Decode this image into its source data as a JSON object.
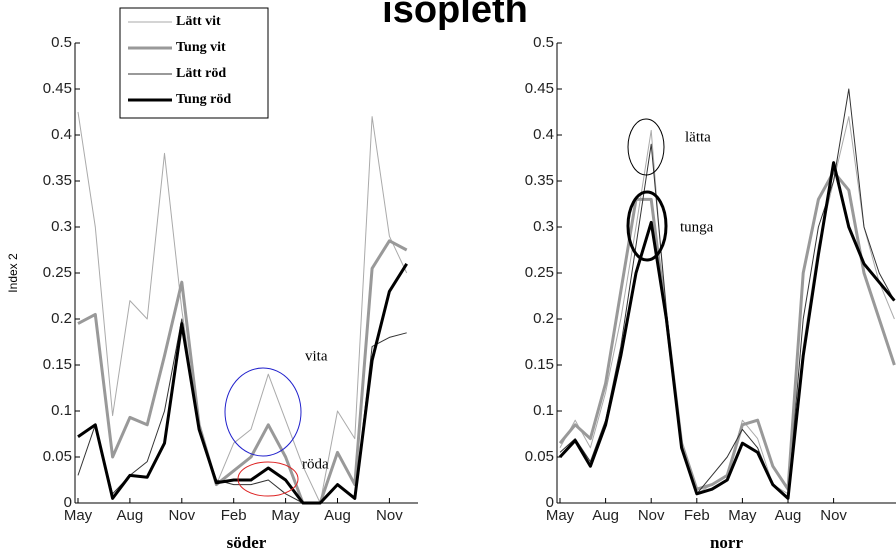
{
  "title": "isopleth",
  "chart_data": [
    {
      "type": "line",
      "xlabel": "söder",
      "ylabel": "Index 2",
      "legend": "upper left",
      "categories": [
        "May",
        null,
        null,
        "Aug",
        null,
        null,
        "Nov",
        null,
        null,
        "Feb",
        null,
        null,
        "May",
        null,
        null,
        "Aug",
        null,
        null,
        "Nov",
        null
      ],
      "ylim": [
        0,
        0.5
      ],
      "yticks": [
        0,
        0.05,
        0.1,
        0.15,
        0.2,
        0.25,
        0.3,
        0.35,
        0.4,
        0.45,
        0.5
      ],
      "annotations": [
        {
          "text": "vita"
        },
        {
          "text": "röda"
        }
      ],
      "series": [
        {
          "name": "Lätt vit",
          "color": "#aaaaaa",
          "width": 1,
          "values": [
            0.425,
            0.3,
            0.095,
            0.22,
            0.2,
            0.38,
            0.21,
            0.08,
            0.02,
            0.065,
            0.08,
            0.14,
            0.09,
            0.04,
            0.0,
            0.1,
            0.07,
            0.42,
            0.29,
            0.25
          ]
        },
        {
          "name": "Tung vit",
          "color": "#999999",
          "width": 3,
          "values": [
            0.195,
            0.205,
            0.05,
            0.093,
            0.085,
            0.16,
            0.24,
            0.085,
            0.02,
            0.035,
            0.05,
            0.085,
            0.05,
            0.0,
            0.0,
            0.055,
            0.02,
            0.255,
            0.285,
            0.275
          ]
        },
        {
          "name": "Lätt röd",
          "color": "#333333",
          "width": 1,
          "values": [
            0.03,
            0.085,
            0.01,
            0.03,
            0.045,
            0.1,
            0.2,
            0.08,
            0.025,
            0.02,
            0.02,
            0.025,
            0.01,
            0.0,
            0.0,
            0.02,
            0.005,
            0.17,
            0.18,
            0.185
          ]
        },
        {
          "name": "Tung röd",
          "color": "#000000",
          "width": 3,
          "values": [
            0.072,
            0.085,
            0.005,
            0.03,
            0.028,
            0.065,
            0.195,
            0.08,
            0.022,
            0.025,
            0.025,
            0.038,
            0.025,
            0.0,
            0.0,
            0.02,
            0.005,
            0.155,
            0.23,
            0.26
          ]
        }
      ]
    },
    {
      "type": "line",
      "xlabel": "norr",
      "categories": [
        "May",
        null,
        null,
        "Aug",
        null,
        null,
        "Nov",
        null,
        null,
        "Feb",
        null,
        null,
        "May",
        null,
        null,
        "Aug",
        null,
        null,
        "Nov",
        null,
        null,
        null,
        null
      ],
      "ylim": [
        0,
        0.5
      ],
      "yticks": [
        0,
        0.05,
        0.1,
        0.15,
        0.2,
        0.25,
        0.3,
        0.35,
        0.4,
        0.45,
        0.5
      ],
      "annotations": [
        {
          "text": "lätta"
        },
        {
          "text": "tunga"
        }
      ],
      "series": [
        {
          "name": "Lätt vit",
          "color": "#aaaaaa",
          "width": 1,
          "values": [
            0.06,
            0.09,
            0.06,
            0.12,
            0.2,
            0.3,
            0.405,
            0.2,
            0.06,
            0.01,
            0.02,
            0.03,
            0.09,
            0.07,
            0.02,
            0.01,
            0.17,
            0.28,
            0.35,
            0.42,
            0.3,
            0.24,
            0.2
          ]
        },
        {
          "name": "Tung vit",
          "color": "#999999",
          "width": 3,
          "values": [
            0.065,
            0.085,
            0.07,
            0.13,
            0.23,
            0.33,
            0.33,
            0.2,
            0.065,
            0.015,
            0.02,
            0.03,
            0.085,
            0.09,
            0.04,
            0.015,
            0.25,
            0.33,
            0.36,
            0.34,
            0.25,
            0.2,
            0.15
          ]
        },
        {
          "name": "Lätt röd",
          "color": "#333333",
          "width": 1,
          "values": [
            0.055,
            0.07,
            0.045,
            0.09,
            0.17,
            0.28,
            0.39,
            0.21,
            0.06,
            0.01,
            0.03,
            0.05,
            0.08,
            0.06,
            0.02,
            0.005,
            0.2,
            0.3,
            0.35,
            0.45,
            0.3,
            0.25,
            0.22
          ]
        },
        {
          "name": "Tung röd",
          "color": "#000000",
          "width": 3,
          "values": [
            0.05,
            0.068,
            0.04,
            0.085,
            0.16,
            0.25,
            0.305,
            0.2,
            0.06,
            0.01,
            0.015,
            0.025,
            0.065,
            0.055,
            0.02,
            0.005,
            0.16,
            0.27,
            0.37,
            0.3,
            0.26,
            0.24,
            0.22
          ]
        }
      ]
    }
  ]
}
